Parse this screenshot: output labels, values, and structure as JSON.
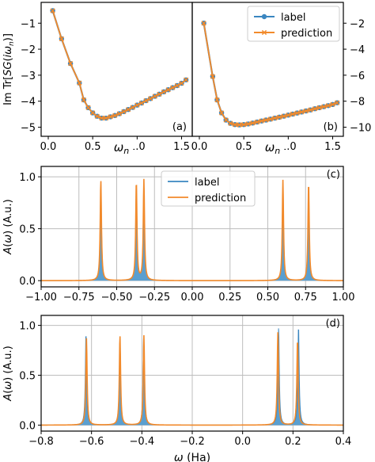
{
  "colors": {
    "label": "#3a86c0",
    "prediction": "#f28a2b",
    "grid": "#bdbdbd",
    "axis": "#000000",
    "fill": "#5a9fd0"
  },
  "chart_data": [
    {
      "id": "a",
      "type": "line",
      "panel_label": "(a)",
      "xlabel": "ω_n",
      "ylabel": "Im Tr[SG(iω_n)]",
      "xlim": [
        -0.08,
        1.62
      ],
      "ylim": [
        -5.35,
        -0.2
      ],
      "xticks": [
        0.0,
        0.5,
        1.0,
        1.5
      ],
      "yticks": [
        -5,
        -4,
        -3,
        -2,
        -1
      ],
      "grid": false,
      "ytick_side": "left",
      "x": [
        0.05,
        0.15,
        0.25,
        0.35,
        0.4,
        0.45,
        0.5,
        0.55,
        0.6,
        0.65,
        0.7,
        0.75,
        0.8,
        0.85,
        0.9,
        0.95,
        1.0,
        1.05,
        1.1,
        1.15,
        1.2,
        1.25,
        1.3,
        1.35,
        1.4,
        1.45,
        1.5,
        1.55
      ],
      "series": [
        {
          "name": "label",
          "marker": "circle",
          "values": [
            -0.52,
            -1.6,
            -2.55,
            -3.3,
            -3.95,
            -4.25,
            -4.45,
            -4.58,
            -4.65,
            -4.65,
            -4.6,
            -4.55,
            -4.48,
            -4.4,
            -4.32,
            -4.24,
            -4.15,
            -4.07,
            -3.98,
            -3.9,
            -3.81,
            -3.73,
            -3.64,
            -3.56,
            -3.48,
            -3.4,
            -3.31,
            -3.18
          ]
        },
        {
          "name": "prediction",
          "marker": "x",
          "values": [
            -0.52,
            -1.6,
            -2.55,
            -3.3,
            -3.95,
            -4.25,
            -4.45,
            -4.58,
            -4.65,
            -4.65,
            -4.6,
            -4.55,
            -4.48,
            -4.4,
            -4.32,
            -4.24,
            -4.15,
            -4.07,
            -3.98,
            -3.9,
            -3.81,
            -3.73,
            -3.64,
            -3.56,
            -3.48,
            -3.4,
            -3.31,
            -3.18
          ]
        }
      ]
    },
    {
      "id": "b",
      "type": "line",
      "panel_label": "(b)",
      "xlabel": "ω_n",
      "ylabel": "",
      "xlim": [
        -0.08,
        1.62
      ],
      "ylim": [
        -10.7,
        -0.4
      ],
      "xticks": [
        0.0,
        0.5,
        1.0,
        1.5
      ],
      "yticks": [
        -10,
        -8,
        -6,
        -4,
        -2
      ],
      "grid": false,
      "ytick_side": "right",
      "legend": {
        "position": "top-right",
        "entries": [
          "label",
          "prediction"
        ]
      },
      "x": [
        0.05,
        0.15,
        0.2,
        0.25,
        0.3,
        0.35,
        0.4,
        0.45,
        0.5,
        0.55,
        0.6,
        0.65,
        0.7,
        0.75,
        0.8,
        0.85,
        0.9,
        0.95,
        1.0,
        1.05,
        1.1,
        1.15,
        1.2,
        1.25,
        1.3,
        1.35,
        1.4,
        1.45,
        1.5,
        1.55
      ],
      "series": [
        {
          "name": "label",
          "marker": "circle",
          "values": [
            -2.0,
            -6.1,
            -7.9,
            -8.9,
            -9.45,
            -9.7,
            -9.8,
            -9.82,
            -9.8,
            -9.75,
            -9.68,
            -9.6,
            -9.52,
            -9.45,
            -9.38,
            -9.3,
            -9.23,
            -9.15,
            -9.07,
            -8.99,
            -8.91,
            -8.83,
            -8.75,
            -8.67,
            -8.58,
            -8.5,
            -8.42,
            -8.34,
            -8.25,
            -8.12
          ]
        },
        {
          "name": "prediction",
          "marker": "x",
          "values": [
            -2.0,
            -6.1,
            -7.9,
            -8.9,
            -9.45,
            -9.7,
            -9.8,
            -9.82,
            -9.8,
            -9.75,
            -9.68,
            -9.6,
            -9.52,
            -9.45,
            -9.38,
            -9.3,
            -9.23,
            -9.15,
            -9.07,
            -8.99,
            -8.91,
            -8.83,
            -8.75,
            -8.67,
            -8.58,
            -8.5,
            -8.42,
            -8.34,
            -8.25,
            -8.12
          ]
        }
      ]
    },
    {
      "id": "c",
      "type": "area",
      "panel_label": "(c)",
      "xlabel": "",
      "ylabel": "A(ω) (A.u.)",
      "xlim": [
        -1.0,
        1.0
      ],
      "ylim": [
        -0.06,
        1.1
      ],
      "xticks": [
        -1.0,
        -0.75,
        -0.5,
        -0.25,
        0.0,
        0.25,
        0.5,
        0.75,
        1.0
      ],
      "xticklabels": [
        "−1.00",
        "−0.75",
        "−0.50",
        "−0.25",
        "0.00",
        "0.25",
        "0.50",
        "0.75",
        "1.00"
      ],
      "yticks": [
        0.0,
        0.5,
        1.0
      ],
      "grid": true,
      "legend": {
        "position": "top-center",
        "entries": [
          "label",
          "prediction"
        ]
      },
      "series": [
        {
          "name": "label",
          "style": "filled",
          "peaks": [
            {
              "center": -0.605,
              "height": 0.94
            },
            {
              "center": -0.37,
              "height": 0.92
            },
            {
              "center": -0.32,
              "height": 0.94
            },
            {
              "center": 0.6,
              "height": 0.94
            },
            {
              "center": 0.77,
              "height": 0.9
            }
          ]
        },
        {
          "name": "prediction",
          "style": "line",
          "peaks": [
            {
              "center": -0.605,
              "height": 0.97
            },
            {
              "center": -0.37,
              "height": 0.95
            },
            {
              "center": -0.32,
              "height": 0.97
            },
            {
              "center": 0.6,
              "height": 0.97
            },
            {
              "center": 0.77,
              "height": 0.94
            }
          ]
        }
      ]
    },
    {
      "id": "d",
      "type": "area",
      "panel_label": "(d)",
      "xlabel": "ω (Ha)",
      "ylabel": "A(ω) (A.u.)",
      "xlim": [
        -0.8,
        0.4
      ],
      "ylim": [
        -0.06,
        1.1
      ],
      "xticks": [
        -0.8,
        -0.6,
        -0.4,
        -0.2,
        0.0,
        0.2,
        0.4
      ],
      "xticklabels": [
        "−0.8",
        "−0.6",
        "−0.4",
        "−0.2",
        "0.0",
        "0.2",
        "0.4"
      ],
      "yticks": [
        0.0,
        0.5,
        1.0
      ],
      "grid": true,
      "series": [
        {
          "name": "label",
          "style": "filled",
          "peaks": [
            {
              "center": -0.622,
              "height": 0.93
            },
            {
              "center": -0.487,
              "height": 0.88
            },
            {
              "center": -0.393,
              "height": 0.88
            },
            {
              "center": 0.143,
              "height": 0.98
            },
            {
              "center": 0.222,
              "height": 1.0
            }
          ]
        },
        {
          "name": "prediction",
          "style": "line",
          "peaks": [
            {
              "center": -0.62,
              "height": 0.87
            },
            {
              "center": -0.487,
              "height": 0.9
            },
            {
              "center": -0.392,
              "height": 0.9
            },
            {
              "center": 0.14,
              "height": 0.93
            },
            {
              "center": 0.218,
              "height": 0.86
            }
          ]
        }
      ]
    }
  ]
}
